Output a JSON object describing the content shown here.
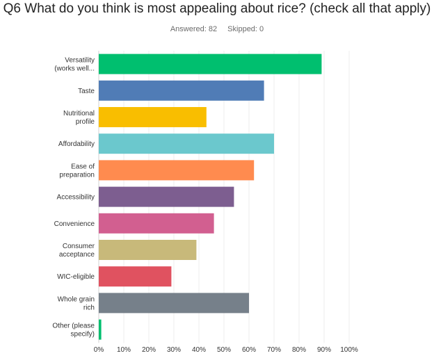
{
  "question": {
    "title": "Q6 What do you think is most appealing about rice? (check all that apply)",
    "answered": "Answered: 82",
    "skipped": "Skipped: 0"
  },
  "chart_data": {
    "type": "bar",
    "orientation": "horizontal",
    "categories": [
      [
        "Versatility",
        "(works well..."
      ],
      [
        "Taste"
      ],
      [
        "Nutritional",
        "profile"
      ],
      [
        "Affordability"
      ],
      [
        "Ease of",
        "preparation"
      ],
      [
        "Accessibility"
      ],
      [
        "Convenience"
      ],
      [
        "Consumer",
        "acceptance"
      ],
      [
        "WIC-eligible"
      ],
      [
        "Whole grain",
        "rich"
      ],
      [
        "Other (please",
        "specify)"
      ]
    ],
    "values": [
      89,
      66,
      43,
      70,
      62,
      54,
      46,
      39,
      29,
      60,
      1
    ],
    "colors": [
      "#00bf6f",
      "#507cb6",
      "#f9be00",
      "#6bc8cd",
      "#ff8b4f",
      "#7d5e90",
      "#d25f90",
      "#c8b97a",
      "#e05260",
      "#76808a",
      "#00bf6f"
    ],
    "xlim": [
      0,
      100
    ],
    "ticks": [
      "0%",
      "10%",
      "20%",
      "30%",
      "40%",
      "50%",
      "60%",
      "70%",
      "80%",
      "90%",
      "100%"
    ],
    "grid": true
  }
}
